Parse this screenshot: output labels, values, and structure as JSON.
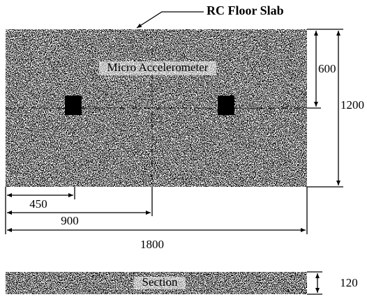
{
  "title": "RC Floor Slab",
  "plan": {
    "label": "Micro Accelerometer"
  },
  "dimensions": {
    "half_width": 600,
    "width": 1200,
    "sensor_offset": 450,
    "half_length": 900,
    "length": 1800
  },
  "section": {
    "label": "Section",
    "thickness": 120
  }
}
